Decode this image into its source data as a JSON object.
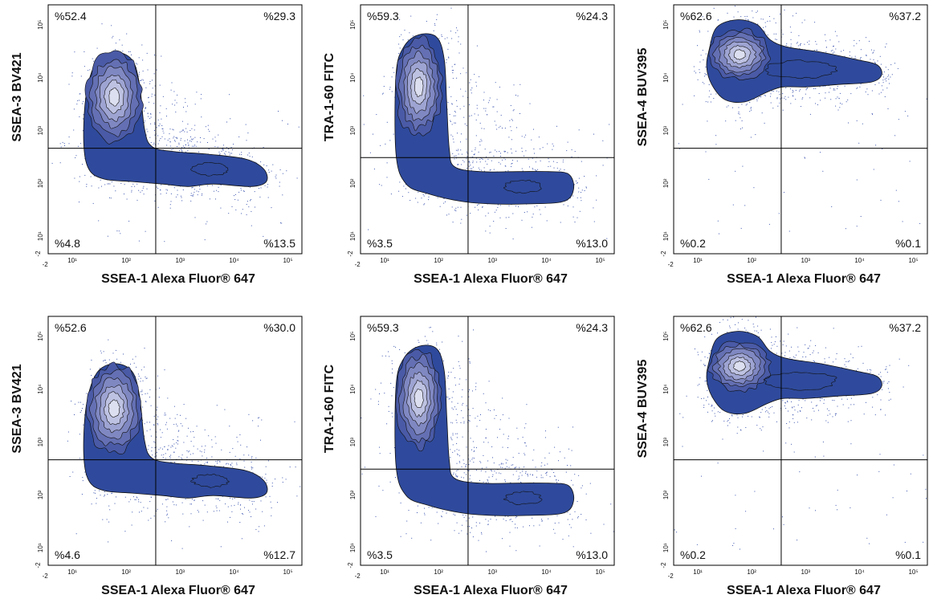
{
  "chart_data": [
    {
      "type": "scatter",
      "subtype": "flow-cytometry-contour",
      "xlabel": "SSEA-1 Alexa Fluor® 647",
      "ylabel": "SSEA-3 BV421",
      "xtick_labels": [
        "-2",
        "10¹",
        "10²",
        "10³",
        "10⁴",
        "10⁵"
      ],
      "ytick_labels": [
        "-2",
        "10¹",
        "10²",
        "10³",
        "10⁴",
        "10⁵"
      ],
      "gate": {
        "x": 300,
        "y": 300
      },
      "quadrants": {
        "upper_left": "%52.4",
        "upper_right": "%29.3",
        "lower_left": "%4.8",
        "lower_right": "%13.5"
      }
    },
    {
      "type": "scatter",
      "subtype": "flow-cytometry-contour",
      "xlabel": "SSEA-1 Alexa Fluor® 647",
      "ylabel": "TRA-1-60 FITC",
      "xtick_labels": [
        "-2",
        "10¹",
        "10²",
        "10³",
        "10⁴",
        "10⁵"
      ],
      "ytick_labels": [
        "-2",
        "10¹",
        "10²",
        "10³",
        "10⁴",
        "10⁵"
      ],
      "gate": {
        "x": 300,
        "y": 200
      },
      "quadrants": {
        "upper_left": "%59.3",
        "upper_right": "%24.3",
        "lower_left": "%3.5",
        "lower_right": "%13.0"
      }
    },
    {
      "type": "scatter",
      "subtype": "flow-cytometry-contour",
      "xlabel": "SSEA-1 Alexa Fluor® 647",
      "ylabel": "SSEA-4 BUV395",
      "xtick_labels": [
        "-2",
        "10¹",
        "10²",
        "10³",
        "10⁴",
        "10⁵"
      ],
      "ytick_labels": [
        "-2",
        "10¹",
        "10²",
        "10³",
        "10⁴",
        "10⁵"
      ],
      "gate": {
        "x": 300,
        "y": 300
      },
      "quadrants": {
        "upper_left": "%62.6",
        "upper_right": "%37.2",
        "lower_left": "%0.2",
        "lower_right": "%0.1"
      }
    },
    {
      "type": "scatter",
      "subtype": "flow-cytometry-contour",
      "xlabel": "SSEA-1 Alexa Fluor® 647",
      "ylabel": "SSEA-3 BV421",
      "xtick_labels": [
        "-2",
        "10¹",
        "10²",
        "10³",
        "10⁴",
        "10⁵"
      ],
      "ytick_labels": [
        "-2",
        "10¹",
        "10²",
        "10³",
        "10⁴",
        "10⁵"
      ],
      "gate": {
        "x": 300,
        "y": 300
      },
      "quadrants": {
        "upper_left": "%52.6",
        "upper_right": "%30.0",
        "lower_left": "%4.6",
        "lower_right": "%12.7"
      }
    },
    {
      "type": "scatter",
      "subtype": "flow-cytometry-contour",
      "xlabel": "SSEA-1 Alexa Fluor® 647",
      "ylabel": "TRA-1-60 FITC",
      "xtick_labels": [
        "-2",
        "10¹",
        "10²",
        "10³",
        "10⁴",
        "10⁵"
      ],
      "ytick_labels": [
        "-2",
        "10¹",
        "10²",
        "10³",
        "10⁴",
        "10⁵"
      ],
      "gate": {
        "x": 300,
        "y": 200
      },
      "quadrants": {
        "upper_left": "%59.3",
        "upper_right": "%24.3",
        "lower_left": "%3.5",
        "lower_right": "%13.0"
      }
    },
    {
      "type": "scatter",
      "subtype": "flow-cytometry-contour",
      "xlabel": "SSEA-1 Alexa Fluor® 647",
      "ylabel": "SSEA-4 BUV395",
      "xtick_labels": [
        "-2",
        "10¹",
        "10²",
        "10³",
        "10⁴",
        "10⁵"
      ],
      "ytick_labels": [
        "-2",
        "10¹",
        "10²",
        "10³",
        "10⁴",
        "10⁵"
      ],
      "gate": {
        "x": 300,
        "y": 300
      },
      "quadrants": {
        "upper_left": "%62.6",
        "upper_right": "%37.2",
        "lower_left": "%0.2",
        "lower_right": "%0.1"
      }
    }
  ],
  "colors": {
    "fill_levels": [
      "#2f4a9c",
      "#4a5aa6",
      "#6470b3",
      "#8088c2",
      "#9ea4d2",
      "#bec2e2",
      "#dcdff0"
    ],
    "dots": "#3f57b0",
    "contour_line": "#111111",
    "gate_line": "#000000",
    "frame": "#000000",
    "text": "#111111"
  }
}
